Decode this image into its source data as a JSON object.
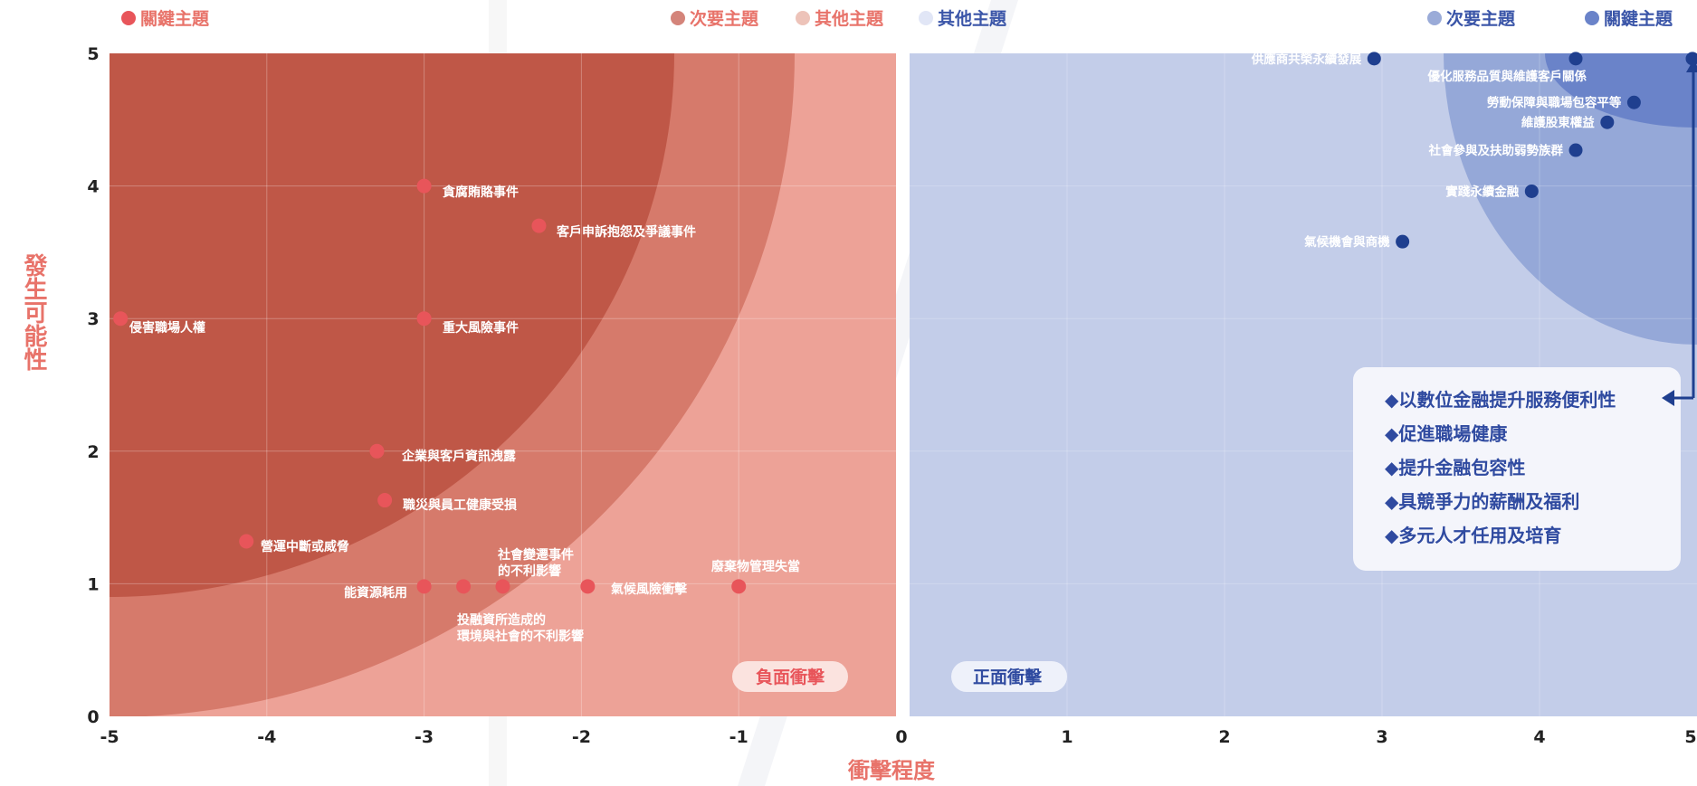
{
  "chart_data": {
    "type": "scatter",
    "xlabel": "衝擊程度",
    "ylabel": "發生可能性",
    "xlim": [
      -5,
      5
    ],
    "ylim": [
      0,
      5
    ],
    "x_ticks": [
      "-5",
      "-4",
      "-3",
      "-2",
      "-1",
      "0",
      "1",
      "2",
      "3",
      "4",
      "5"
    ],
    "y_ticks": [
      "0",
      "1",
      "2",
      "3",
      "4",
      "5"
    ],
    "grid": true,
    "legend_left": [
      {
        "label": "關鍵主題",
        "color": "#e8555a"
      },
      {
        "label": "次要主題",
        "color": "#d4847a"
      },
      {
        "label": "其他主題",
        "color": "#edc3b9"
      }
    ],
    "legend_right": [
      {
        "label": "其他主題",
        "color": "#e1e6f6"
      },
      {
        "label": "次要主題",
        "color": "#9aabd8"
      },
      {
        "label": "關鍵主題",
        "color": "#6a83c9"
      }
    ],
    "negative_label": "負面衝擊",
    "positive_label": "正面衝擊",
    "colors": {
      "neg_bg": "#eda297",
      "neg_mid": "#d67a6b",
      "neg_core": "#bf5747",
      "neg_point": "#e8555a",
      "pos_bg": "#c3cde9",
      "pos_mid": "#95a8d8",
      "pos_core": "#6a83c9",
      "pos_point": "#1f3f8f",
      "axis_label": "#e8736a",
      "callout_text": "#2f4aa0",
      "arrow": "#1f3f8f"
    },
    "negative_series": [
      {
        "label": "貪腐賄賂事件",
        "x": -3.0,
        "y": 4.0
      },
      {
        "label": "客戶申訴抱怨及爭議事件",
        "x": -2.27,
        "y": 3.7
      },
      {
        "label": "侵害職場人權",
        "x": -4.93,
        "y": 3.0
      },
      {
        "label": "重大風險事件",
        "x": -3.0,
        "y": 3.0
      },
      {
        "label": "企業與客戶資訊洩露",
        "x": -3.3,
        "y": 2.0
      },
      {
        "label": "職災與員工健康受損",
        "x": -3.25,
        "y": 1.63
      },
      {
        "label": "營運中斷或威脅",
        "x": -4.13,
        "y": 1.32
      },
      {
        "label": "能資源耗用",
        "x": -3.0,
        "y": 0.98
      },
      {
        "label": "投融資所造成的環境與社會的不利影響",
        "x": -2.75,
        "y": 0.98
      },
      {
        "label": "社會變遷事件的不利影響",
        "x": -2.5,
        "y": 0.98
      },
      {
        "label": "氣候風險衝擊",
        "x": -1.96,
        "y": 0.98
      },
      {
        "label": "廢棄物管理失當",
        "x": -1.0,
        "y": 0.98
      }
    ],
    "negative_text": {
      "p0": "貪腐賄賂事件",
      "p1": "客戶申訴抱怨及爭議事件",
      "p2": "侵害職場人權",
      "p3": "重大風險事件",
      "p4": "企業與客戶資訊洩露",
      "p5": "職災與員工健康受損",
      "p6": "營運中斷或威脅",
      "p7": "能資源耗用",
      "p8a": "投融資所造成的",
      "p8b": "環境與社會的不利影響",
      "p9a": "社會變遷事件",
      "p9b": "的不利影響",
      "p10": "氣候風險衝擊",
      "p11": "廢棄物管理失當"
    },
    "positive_series": [
      {
        "label": "供應商共榮永續發展",
        "x": 2.95,
        "y": 4.96
      },
      {
        "label": "優化服務品質與維護客戶關係",
        "x": 4.23,
        "y": 4.96
      },
      {
        "label": "",
        "x": 5.0,
        "y": 4.96
      },
      {
        "label": "勞動保障與職場包容平等",
        "x": 4.6,
        "y": 4.63
      },
      {
        "label": "維護股東權益",
        "x": 4.43,
        "y": 4.48
      },
      {
        "label": "社會參與及扶助弱勢族群",
        "x": 4.23,
        "y": 4.27
      },
      {
        "label": "實踐永續金融",
        "x": 3.95,
        "y": 3.96
      },
      {
        "label": "氣候機會與商機",
        "x": 3.13,
        "y": 3.58
      }
    ],
    "callout_items": [
      "◆以數位金融提升服務便利性",
      "◆促進職場健康",
      "◆提升金融包容性",
      "◆具競爭力的薪酬及福利",
      "◆多元人才任用及培育"
    ]
  }
}
